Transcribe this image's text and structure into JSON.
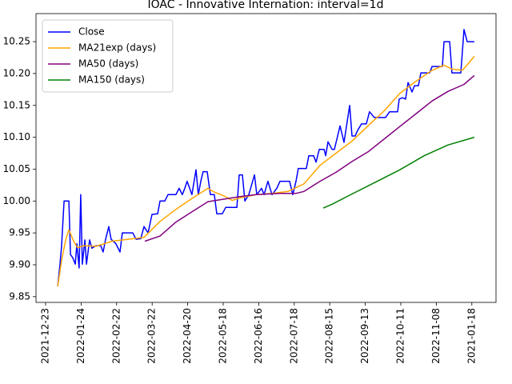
{
  "chart_data": {
    "type": "line",
    "title": "IOAC - Innovative Internation: interval=1d",
    "xlim": [
      -5.4,
      253.6
    ],
    "xticks": [
      {
        "value": 0,
        "label": "2021-12-23"
      },
      {
        "value": 20,
        "label": "2022-01-24"
      },
      {
        "value": 40,
        "label": "2022-02-22"
      },
      {
        "value": 60,
        "label": "2022-03-22"
      },
      {
        "value": 80,
        "label": "2022-04-20"
      },
      {
        "value": 100,
        "label": "2022-05-18"
      },
      {
        "value": 120,
        "label": "2022-06-16"
      },
      {
        "value": 140,
        "label": "2022-07-18"
      },
      {
        "value": 160,
        "label": "2022-08-15"
      },
      {
        "value": 180,
        "label": "2022-09-13"
      },
      {
        "value": 200,
        "label": "2022-10-11"
      },
      {
        "value": 220,
        "label": "2022-11-08"
      },
      {
        "value": 240,
        "label": "2021-01-18"
      }
    ],
    "ylim": [
      9.841,
      10.294
    ],
    "yticks": [
      9.85,
      {
        "value": 9.9,
        "label": "9.90"
      },
      9.95,
      {
        "value": 10.0,
        "label": "10.00"
      },
      10.05,
      {
        "value": 10.1,
        "label": "10.10"
      },
      10.15,
      {
        "value": 10.2,
        "label": "10.20"
      },
      10.25
    ],
    "legend": "upper left",
    "series": [
      {
        "name": "Close",
        "color": "#0000ff",
        "x": [
          6.8,
          8.1,
          9,
          10.4,
          13.1,
          14,
          15.3,
          16.7,
          17.6,
          18.9,
          19.8,
          20.7,
          22.1,
          23,
          24.8,
          26.1,
          28.4,
          31.1,
          32.4,
          33.8,
          35.6,
          36.9,
          39.6,
          41.9,
          43.2,
          49.1,
          50.9,
          53.6,
          55.4,
          57.7,
          59.9,
          63.1,
          64.4,
          67.1,
          68.9,
          73.4,
          75.2,
          77,
          78.4,
          79.7,
          82.4,
          84.7,
          86,
          87.4,
          88.7,
          91,
          92.8,
          95,
          96.4,
          99.5,
          101.4,
          107.7,
          109,
          110.8,
          112.2,
          114.4,
          117.6,
          118.9,
          121.6,
          123,
          125.2,
          127.5,
          130.2,
          132,
          137.4,
          139.2,
          141,
          142.3,
          144.6,
          146.8,
          148.2,
          150.9,
          152.3,
          154.1,
          156.8,
          157.7,
          159,
          161.3,
          162.6,
          165.8,
          168,
          171.2,
          172.5,
          174.3,
          175.7,
          177.9,
          180.6,
          182.4,
          185.1,
          187.8,
          191.4,
          193.7,
          198.2,
          199.1,
          200.9,
          202.7,
          204.1,
          206.3,
          207.7,
          209.9,
          211.3,
          216.2,
          217.6,
          223.4,
          224.3,
          227.5,
          228.8,
          233.8,
          235.6,
          237.4,
          241.4
        ],
        "values": [
          9.866,
          9.901,
          9.93,
          10.0,
          10.0,
          9.916,
          9.911,
          9.901,
          9.933,
          9.895,
          10.01,
          9.901,
          9.939,
          9.901,
          9.939,
          9.926,
          9.93,
          9.93,
          9.92,
          9.94,
          9.96,
          9.94,
          9.933,
          9.92,
          9.95,
          9.95,
          9.94,
          9.941,
          9.96,
          9.95,
          9.979,
          9.98,
          10.0,
          10.0,
          10.01,
          10.01,
          10.02,
          10.01,
          10.02,
          10.031,
          10.01,
          10.049,
          10.01,
          10.031,
          10.046,
          10.046,
          10.01,
          10.01,
          9.98,
          9.98,
          9.99,
          9.99,
          10.041,
          10.041,
          10.0,
          10.01,
          10.041,
          10.01,
          10.02,
          10.01,
          10.031,
          10.01,
          10.02,
          10.031,
          10.031,
          10.01,
          10.031,
          10.051,
          10.051,
          10.051,
          10.071,
          10.071,
          10.061,
          10.081,
          10.081,
          10.071,
          10.093,
          10.081,
          10.081,
          10.118,
          10.092,
          10.15,
          10.102,
          10.102,
          10.111,
          10.121,
          10.121,
          10.14,
          10.131,
          10.131,
          10.131,
          10.14,
          10.14,
          10.16,
          10.162,
          10.16,
          10.186,
          10.171,
          10.181,
          10.181,
          10.201,
          10.201,
          10.211,
          10.211,
          10.25,
          10.25,
          10.201,
          10.201,
          10.269,
          10.25,
          10.25
        ]
      },
      {
        "name": "MA21exp (days)",
        "color": "#ffa500",
        "x": [
          6.8,
          9,
          11.3,
          13.1,
          15.8,
          18,
          21.6,
          28.4,
          37.4,
          46.4,
          55.4,
          64.4,
          73.4,
          82.4,
          91.4,
          95,
          100.5,
          105,
          109.5,
          118.5,
          127.5,
          136.5,
          145.5,
          154.5,
          163.5,
          172.5,
          181.5,
          190.5,
          199.5,
          208.6,
          217.6,
          224.3,
          228.8,
          234.7,
          237.8,
          241.4
        ],
        "values": [
          9.866,
          9.907,
          9.939,
          9.955,
          9.937,
          9.927,
          9.93,
          9.929,
          9.937,
          9.94,
          9.943,
          9.968,
          9.987,
          10.004,
          10.02,
          10.014,
          10.008,
          10.001,
          10.005,
          10.01,
          10.012,
          10.015,
          10.027,
          10.056,
          10.075,
          10.094,
          10.118,
          10.141,
          10.169,
          10.188,
          10.205,
          10.213,
          10.207,
          10.205,
          10.215,
          10.227
        ]
      },
      {
        "name": "MA50 (days)",
        "color": "#800080",
        "x": [
          55.9,
          64.4,
          73.4,
          82.4,
          91.4,
          100.5,
          109.5,
          118.5,
          132,
          141,
          145.5,
          154.5,
          163.5,
          172.5,
          181.5,
          190.5,
          199.5,
          208.6,
          217.6,
          226.6,
          235.6,
          241.4
        ],
        "values": [
          9.937,
          9.945,
          9.967,
          9.983,
          9.999,
          10.003,
          10.007,
          10.01,
          10.012,
          10.012,
          10.015,
          10.031,
          10.045,
          10.062,
          10.077,
          10.097,
          10.117,
          10.137,
          10.157,
          10.172,
          10.183,
          10.197
        ]
      },
      {
        "name": "MA150 (days)",
        "color": "#008000",
        "x": [
          156.3,
          161.3,
          172.5,
          186,
          199.5,
          213.1,
          226.6,
          241.4
        ],
        "values": [
          9.989,
          9.995,
          10.011,
          10.03,
          10.049,
          10.071,
          10.088,
          10.1
        ]
      }
    ]
  }
}
